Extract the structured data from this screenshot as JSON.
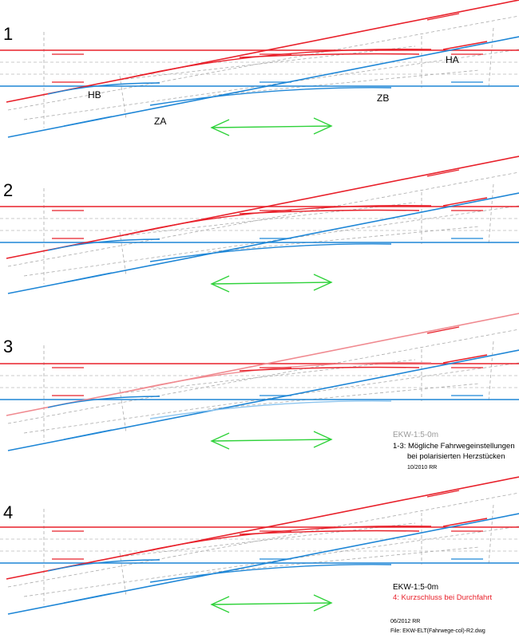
{
  "panels": [
    {
      "number": "1",
      "labels": {
        "hb": "HB",
        "za": "ZA",
        "zb": "ZB",
        "ha": "HA"
      },
      "state": "normal"
    },
    {
      "number": "2",
      "state": "normal"
    },
    {
      "number": "3",
      "state": "faded"
    },
    {
      "number": "4",
      "state": "normal"
    }
  ],
  "note_a": {
    "title": "EKW-1:5-0m",
    "line1": "1-3: Mögliche Fahrwegeinstellungen",
    "line2": "bei polarisierten Herzstücken",
    "date": "10/2010 RR"
  },
  "note_b": {
    "title": "EKW-1:5-0m",
    "line1": "4: Kurzschluss bei Durchfahrt"
  },
  "footer": {
    "date": "06/2012 RR",
    "file": "File: EKW-ELT(Fahrwege-col)-R2.dwg"
  },
  "colors": {
    "red": "#e8202a",
    "blue": "#1e86d6",
    "light_red": "#f08a90",
    "light_blue": "#8cc4ee",
    "green": "#2fd23a",
    "gray": "#888888",
    "note_gray": "#9a9a9a",
    "note_red": "#e8202a"
  }
}
